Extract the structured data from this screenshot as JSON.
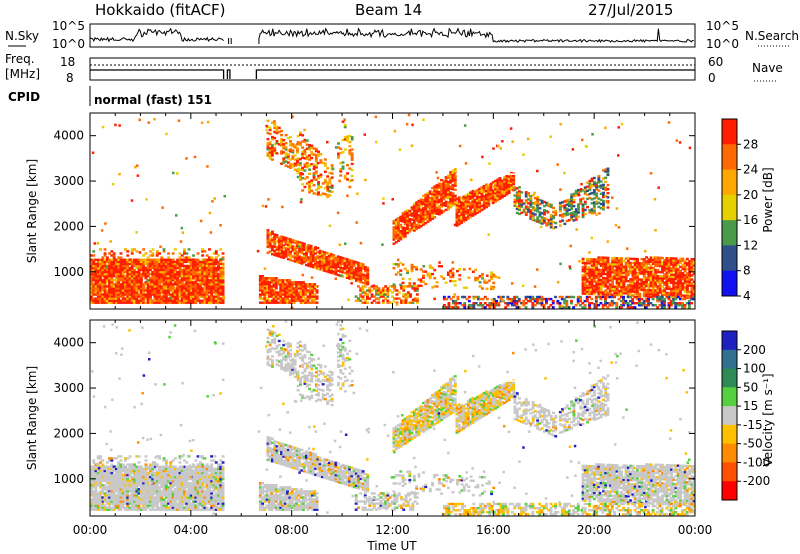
{
  "header": {
    "radar": "Hokkaido (fitACF)",
    "beam": "Beam 14",
    "date": "27/Jul/2015"
  },
  "panels": {
    "nsky_label": "N.Sky",
    "nsearch_label": "N.Search",
    "nsky_ticks": [
      "10^5",
      "10^0"
    ],
    "freq_label_1": "Freq.",
    "freq_label_2": "[MHz]",
    "freq_ticks": [
      "18",
      "8"
    ],
    "nave_label": "Nave",
    "nave_ticks": [
      "60",
      "0"
    ],
    "cpid_label": "CPID",
    "cpid_value": "normal (fast) 151"
  },
  "chart_data": [
    {
      "type": "heatmap",
      "name": "power",
      "ylabel": "Slant Range [km]",
      "xlabel": "Time UT",
      "x_range_hours": [
        0,
        24
      ],
      "ylim": [
        180,
        4500
      ],
      "xticks": [
        "00:00",
        "04:00",
        "08:00",
        "12:00",
        "16:00",
        "20:00",
        "00:00"
      ],
      "yticks": [
        1000,
        2000,
        3000,
        4000
      ],
      "colorbar": {
        "label": "Power [dB]",
        "ticks": [
          "28",
          "24",
          "20",
          "16",
          "12",
          "8",
          "4"
        ],
        "colors": [
          "#ff1e00",
          "#ff6a00",
          "#ffa800",
          "#e6d000",
          "#4a9a4a",
          "#2f4f8a",
          "#1010f0"
        ]
      }
    },
    {
      "type": "heatmap",
      "name": "velocity",
      "ylabel": "Slant Range [km]",
      "xlabel": "Time UT",
      "x_range_hours": [
        0,
        24
      ],
      "ylim": [
        180,
        4500
      ],
      "xticks": [
        "00:00",
        "04:00",
        "08:00",
        "12:00",
        "16:00",
        "20:00",
        "00:00"
      ],
      "yticks": [
        1000,
        2000,
        3000,
        4000
      ],
      "colorbar": {
        "label": "Velocity [m s⁻¹]",
        "ticks": [
          "200",
          "100",
          "50",
          "15",
          "-15",
          "-50",
          "-100",
          "-200"
        ],
        "colors": [
          "#2020c0",
          "#2f6f8f",
          "#2e8b57",
          "#55d040",
          "#c8c8c8",
          "#ffc000",
          "#ff8c00",
          "#ff5000",
          "#ff0000"
        ]
      }
    }
  ]
}
